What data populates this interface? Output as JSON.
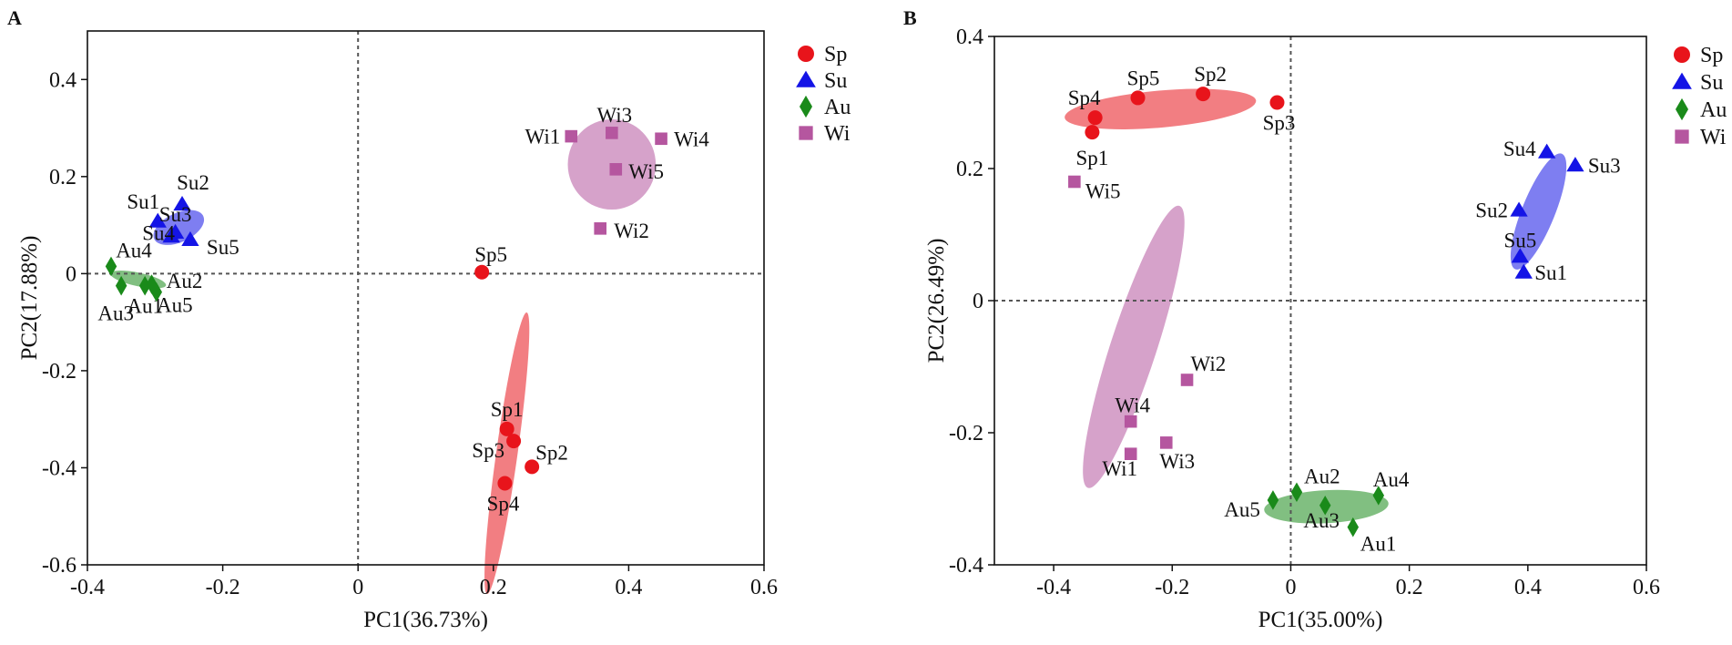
{
  "chart_data": [
    {
      "type": "scatter",
      "panel": "A",
      "xlabel": "PC1(36.73%)",
      "ylabel": "PC2(17.88%)",
      "xlim": [
        -0.4,
        0.6
      ],
      "ylim": [
        -0.6,
        0.5
      ],
      "xticks": [
        -0.4,
        -0.2,
        0,
        0.2,
        0.4,
        0.6
      ],
      "xtick_labels": [
        "-0.4",
        "-0.2",
        "0",
        "0.2",
        "0.4",
        "0.6"
      ],
      "yticks": [
        -0.6,
        -0.4,
        -0.2,
        0,
        0.2,
        0.4
      ],
      "ytick_labels": [
        "-0.6",
        "-0.4",
        "-0.2",
        "0",
        "0.2",
        "0.4"
      ],
      "legend": "top-right",
      "series": [
        {
          "name": "Sp",
          "marker": "circle",
          "color": "#e8141b",
          "points": [
            {
              "label": "Sp1",
              "x": 0.22,
              "y": -0.32
            },
            {
              "label": "Sp2",
              "x": 0.257,
              "y": -0.398
            },
            {
              "label": "Sp3",
              "x": 0.23,
              "y": -0.345
            },
            {
              "label": "Sp4",
              "x": 0.217,
              "y": -0.432
            },
            {
              "label": "Sp5",
              "x": 0.183,
              "y": 0.003
            }
          ],
          "ellipse": {
            "cx": 0.22,
            "cy": -0.37,
            "rx": 0.21,
            "ry": 0.022,
            "angle_deg": -82
          }
        },
        {
          "name": "Su",
          "marker": "triangle",
          "color": "#1414e6",
          "points": [
            {
              "label": "Su1",
              "x": -0.296,
              "y": 0.108
            },
            {
              "label": "Su2",
              "x": -0.26,
              "y": 0.143
            },
            {
              "label": "Su3",
              "x": -0.27,
              "y": 0.085
            },
            {
              "label": "Su4",
              "x": -0.276,
              "y": 0.077
            },
            {
              "label": "Su5",
              "x": -0.248,
              "y": 0.07
            }
          ],
          "ellipse": {
            "cx": -0.265,
            "cy": 0.095,
            "rx": 0.04,
            "ry": 0.03,
            "angle_deg": -25
          }
        },
        {
          "name": "Au",
          "marker": "diamond",
          "color": "#1a8a1a",
          "points": [
            {
              "label": "Au1",
              "x": -0.315,
              "y": -0.025
            },
            {
              "label": "Au2",
              "x": -0.305,
              "y": -0.022
            },
            {
              "label": "Au3",
              "x": -0.35,
              "y": -0.025
            },
            {
              "label": "Au4",
              "x": -0.365,
              "y": 0.015
            },
            {
              "label": "Au5",
              "x": -0.298,
              "y": -0.038
            }
          ],
          "ellipse": {
            "cx": -0.325,
            "cy": -0.012,
            "rx": 0.042,
            "ry": 0.014,
            "angle_deg": 12
          }
        },
        {
          "name": "Wi",
          "marker": "square",
          "color": "#b5569f",
          "points": [
            {
              "label": "Wi1",
              "x": 0.315,
              "y": 0.283
            },
            {
              "label": "Wi2",
              "x": 0.358,
              "y": 0.093
            },
            {
              "label": "Wi3",
              "x": 0.375,
              "y": 0.29
            },
            {
              "label": "Wi4",
              "x": 0.448,
              "y": 0.278
            },
            {
              "label": "Wi5",
              "x": 0.381,
              "y": 0.215
            }
          ],
          "ellipse": {
            "cx": 0.375,
            "cy": 0.225,
            "rx": 0.065,
            "ry": 0.093,
            "angle_deg": 0
          }
        }
      ]
    },
    {
      "type": "scatter",
      "panel": "B",
      "xlabel": "PC1(35.00%)",
      "ylabel": "PC2(26.49%)",
      "xlim": [
        -0.5,
        0.6
      ],
      "ylim": [
        -0.4,
        0.4
      ],
      "xticks": [
        -0.4,
        -0.2,
        0,
        0.2,
        0.4,
        0.6
      ],
      "xtick_labels": [
        "-0.4",
        "-0.2",
        "0",
        "0.2",
        "0.4",
        "0.6"
      ],
      "yticks": [
        -0.4,
        -0.2,
        0,
        0.2,
        0.4
      ],
      "ytick_labels": [
        "-0.4",
        "-0.2",
        "0",
        "0.2",
        "0.4"
      ],
      "legend": "top-right",
      "series": [
        {
          "name": "Sp",
          "marker": "circle",
          "color": "#e8141b",
          "points": [
            {
              "label": "Sp1",
              "x": -0.335,
              "y": 0.255
            },
            {
              "label": "Sp2",
              "x": -0.148,
              "y": 0.313
            },
            {
              "label": "Sp3",
              "x": -0.023,
              "y": 0.3
            },
            {
              "label": "Sp4",
              "x": -0.33,
              "y": 0.277
            },
            {
              "label": "Sp5",
              "x": -0.258,
              "y": 0.307
            }
          ],
          "ellipse": {
            "cx": -0.22,
            "cy": 0.29,
            "rx": 0.162,
            "ry": 0.028,
            "angle_deg": -5
          }
        },
        {
          "name": "Su",
          "marker": "triangle",
          "color": "#1414e6",
          "points": [
            {
              "label": "Su1",
              "x": 0.393,
              "y": 0.043
            },
            {
              "label": "Su2",
              "x": 0.385,
              "y": 0.137
            },
            {
              "label": "Su3",
              "x": 0.48,
              "y": 0.205
            },
            {
              "label": "Su4",
              "x": 0.432,
              "y": 0.225
            },
            {
              "label": "Su5",
              "x": 0.387,
              "y": 0.067
            }
          ],
          "ellipse": {
            "cx": 0.418,
            "cy": 0.135,
            "rx": 0.105,
            "ry": 0.025,
            "angle_deg": -68
          }
        },
        {
          "name": "Au",
          "marker": "diamond",
          "color": "#1a8a1a",
          "points": [
            {
              "label": "Au1",
              "x": 0.105,
              "y": -0.343
            },
            {
              "label": "Au2",
              "x": 0.01,
              "y": -0.29
            },
            {
              "label": "Au3",
              "x": 0.058,
              "y": -0.31
            },
            {
              "label": "Au4",
              "x": 0.148,
              "y": -0.295
            },
            {
              "label": "Au5",
              "x": -0.03,
              "y": -0.302
            }
          ],
          "ellipse": {
            "cx": 0.06,
            "cy": -0.312,
            "rx": 0.105,
            "ry": 0.025,
            "angle_deg": -3
          }
        },
        {
          "name": "Wi",
          "marker": "square",
          "color": "#b5569f",
          "points": [
            {
              "label": "Wi1",
              "x": -0.27,
              "y": -0.232
            },
            {
              "label": "Wi2",
              "x": -0.175,
              "y": -0.12
            },
            {
              "label": "Wi3",
              "x": -0.21,
              "y": -0.215
            },
            {
              "label": "Wi4",
              "x": -0.27,
              "y": -0.183
            },
            {
              "label": "Wi5",
              "x": -0.365,
              "y": 0.18
            }
          ],
          "ellipse": {
            "cx": -0.265,
            "cy": -0.07,
            "rx": 0.25,
            "ry": 0.035,
            "angle_deg": -72
          }
        }
      ]
    }
  ]
}
